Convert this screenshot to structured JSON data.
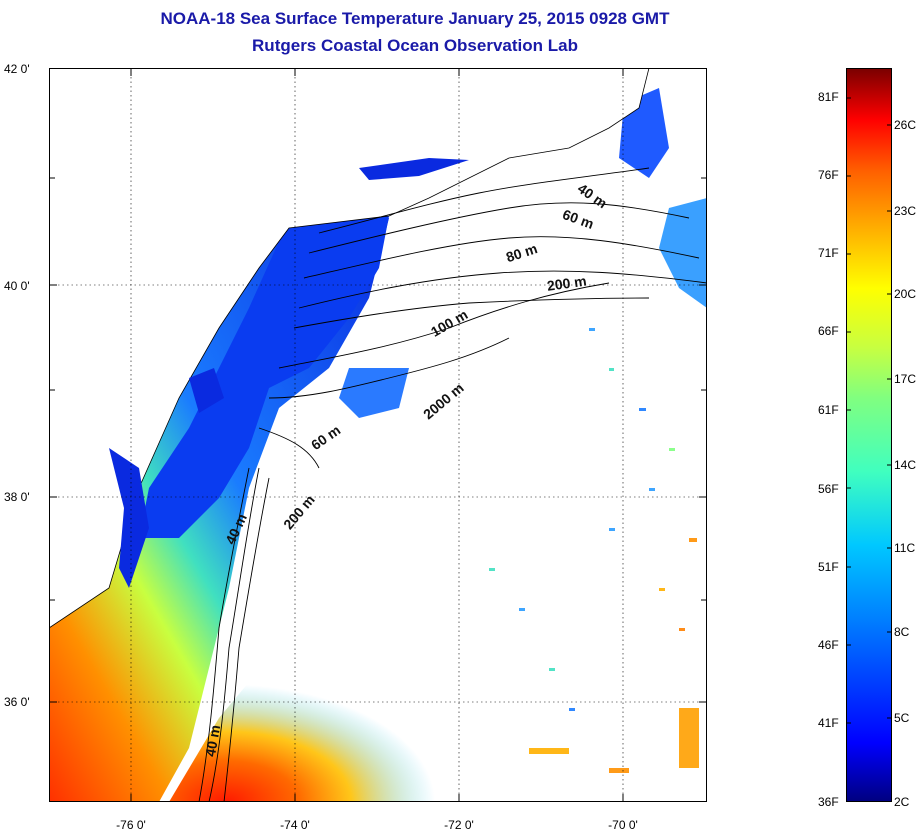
{
  "title": "NOAA-18 Sea Surface Temperature January 25, 2015 0928 GMT",
  "subtitle": "Rutgers Coastal Ocean Observation Lab",
  "map": {
    "lat_labels": [
      "42 0'",
      "40 0'",
      "38 0'",
      "36 0'"
    ],
    "lon_labels": [
      "-76 0'",
      "-74 0'",
      "-72 0'",
      "-70 0'"
    ],
    "grid": "dotted",
    "land_color": "#ffffff",
    "coastline_color": "#000000"
  },
  "contours": [
    "40 m",
    "60 m",
    "80 m",
    "200 m",
    "100 m",
    "2000 m",
    "60 m",
    "200 m",
    "40 m",
    "40 m"
  ],
  "colorbar": {
    "fahrenheit_labels": [
      "81F",
      "76F",
      "71F",
      "66F",
      "61F",
      "56F",
      "51F",
      "46F",
      "41F",
      "36F"
    ],
    "celsius_labels": [
      "26C",
      "23C",
      "20C",
      "17C",
      "14C",
      "11C",
      "8C",
      "5C",
      "2C"
    ],
    "colors": [
      "#000080",
      "#0000ff",
      "#0080ff",
      "#00c8ff",
      "#40ffbf",
      "#80ff80",
      "#c8ff40",
      "#ffff00",
      "#ffb000",
      "#ff6000",
      "#ff0000",
      "#a00000",
      "#7a0000"
    ]
  }
}
